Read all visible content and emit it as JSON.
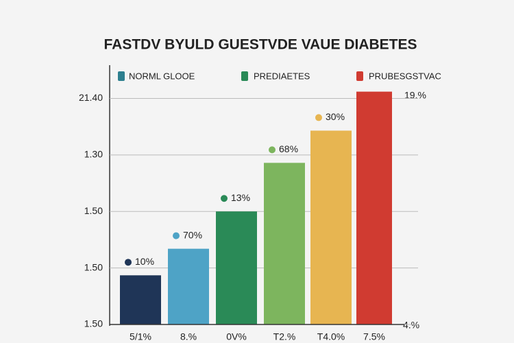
{
  "chart_data": {
    "type": "bar",
    "title": "FASTDV BYULD GUESTVDE VAUE DIABETES",
    "legend": [
      "NORML GLOOE",
      "PREDIAETES",
      "PRUBESGSTVAC"
    ],
    "categories": [
      "5/1%",
      "8.%",
      "0V%",
      "T2.%",
      "T4.0%",
      "7.5%"
    ],
    "values": [
      0.87,
      1.34,
      2.0,
      2.86,
      3.43,
      4.12
    ],
    "colors": [
      "#1f3557",
      "#4ea3c6",
      "#2a8a57",
      "#7db55e",
      "#e7b551",
      "#d03b31"
    ],
    "annotations": [
      "10%",
      "70%",
      "13%",
      "68%",
      "30%"
    ],
    "right_labels": [
      "19.%",
      "4.%"
    ],
    "ylim": [
      0,
      4.2
    ],
    "yticks": [
      {
        "value": 0,
        "label": "1.50"
      },
      {
        "value": 1,
        "label": "1.50"
      },
      {
        "value": 2,
        "label": "1.50"
      },
      {
        "value": 3,
        "label": "1.30"
      },
      {
        "value": 4,
        "label": "21.40"
      }
    ],
    "grid": true
  }
}
